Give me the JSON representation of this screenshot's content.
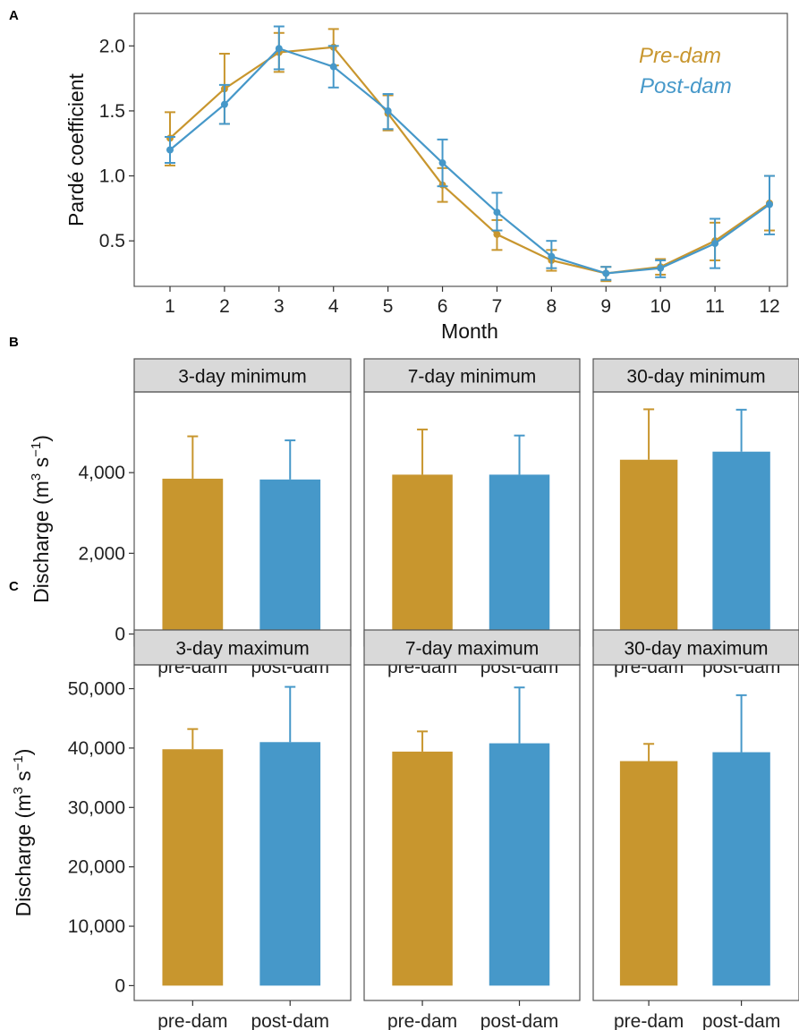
{
  "colors": {
    "pre": "#C8962E",
    "post": "#4698C9",
    "strip_bg": "#D9D9D9",
    "frame": "#555555"
  },
  "panel_labels": [
    "A",
    "B",
    "C"
  ],
  "chart_data": [
    {
      "id": "A",
      "type": "line",
      "xlabel": "Month",
      "ylabel": "Pardé coefficient",
      "x": [
        1,
        2,
        3,
        4,
        5,
        6,
        7,
        8,
        9,
        10,
        11,
        12
      ],
      "x_tick_labels": [
        "1",
        "2",
        "3",
        "4",
        "5",
        "6",
        "7",
        "8",
        "9",
        "10",
        "11",
        "12"
      ],
      "y_ticks": [
        0.5,
        1.0,
        1.5,
        2.0
      ],
      "y_tick_labels": [
        "0.5",
        "1.0",
        "1.5",
        "2.0"
      ],
      "ylim": [
        0.15,
        2.25
      ],
      "grid": false,
      "legend_position": "top-right",
      "series": [
        {
          "name": "Pre-dam",
          "color_key": "pre",
          "values": [
            1.29,
            1.67,
            1.95,
            1.99,
            1.48,
            0.93,
            0.55,
            0.35,
            0.25,
            0.3,
            0.5,
            0.79
          ],
          "err_low": [
            1.08,
            1.4,
            1.8,
            1.85,
            1.35,
            0.8,
            0.43,
            0.27,
            0.19,
            0.24,
            0.35,
            0.58
          ],
          "err_high": [
            1.49,
            1.94,
            2.1,
            2.13,
            1.62,
            1.06,
            0.66,
            0.43,
            0.3,
            0.36,
            0.64,
            1.0
          ]
        },
        {
          "name": "Post-dam",
          "color_key": "post",
          "values": [
            1.2,
            1.55,
            1.98,
            1.84,
            1.5,
            1.1,
            0.72,
            0.38,
            0.25,
            0.29,
            0.48,
            0.78
          ],
          "err_low": [
            1.1,
            1.4,
            1.82,
            1.68,
            1.36,
            0.92,
            0.58,
            0.29,
            0.2,
            0.22,
            0.29,
            0.55
          ],
          "err_high": [
            1.3,
            1.7,
            2.15,
            2.0,
            1.63,
            1.28,
            0.87,
            0.5,
            0.3,
            0.35,
            0.67,
            1.0
          ]
        }
      ]
    },
    {
      "id": "B",
      "type": "bar",
      "ylabel_main": "Discharge (m",
      "ylabel_sup1": "3",
      "ylabel_mid": " s",
      "ylabel_sup2": "−1",
      "ylabel_end": ")",
      "categories": [
        "pre-dam",
        "post-dam"
      ],
      "y_ticks": [
        0,
        2000,
        4000
      ],
      "y_tick_labels": [
        "0",
        "2,000",
        "4,000"
      ],
      "ylim": [
        -300,
        6000
      ],
      "facets": [
        {
          "title": "3-day minimum",
          "values": [
            3850,
            3830
          ],
          "err_high": [
            4900,
            4800
          ]
        },
        {
          "title": "7-day minimum",
          "values": [
            3950,
            3950
          ],
          "err_high": [
            5070,
            4920
          ]
        },
        {
          "title": "30-day minimum",
          "values": [
            4320,
            4520
          ],
          "err_high": [
            5570,
            5560
          ]
        }
      ]
    },
    {
      "id": "C",
      "type": "bar",
      "ylabel_main": "Discharge (m",
      "ylabel_sup1": "3",
      "ylabel_mid": " s",
      "ylabel_sup2": "−1",
      "ylabel_end": ")",
      "categories": [
        "pre-dam",
        "post-dam"
      ],
      "y_ticks": [
        0,
        10000,
        20000,
        30000,
        40000,
        50000
      ],
      "y_tick_labels": [
        "0",
        "10,000",
        "20,000",
        "30,000",
        "40,000",
        "50,000"
      ],
      "ylim": [
        -2500,
        54000
      ],
      "facets": [
        {
          "title": "3-day maximum",
          "values": [
            39800,
            41000
          ],
          "err_high": [
            43200,
            50300
          ]
        },
        {
          "title": "7-day maximum",
          "values": [
            39400,
            40800
          ],
          "err_high": [
            42800,
            50200
          ]
        },
        {
          "title": "30-day maximum",
          "values": [
            37800,
            39300
          ],
          "err_high": [
            40700,
            48900
          ]
        }
      ]
    }
  ]
}
